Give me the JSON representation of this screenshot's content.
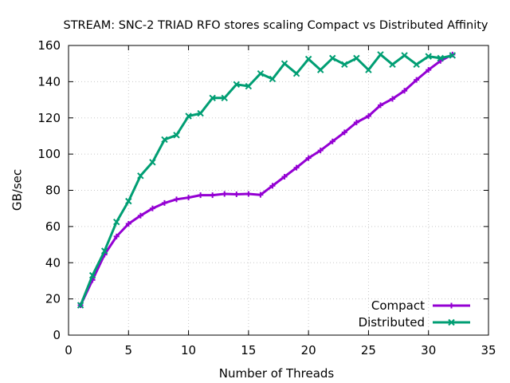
{
  "chart_data": {
    "type": "line",
    "title": "STREAM: SNC-2 TRIAD RFO stores scaling Compact vs Distributed Affinity",
    "xlabel": "Number of Threads",
    "ylabel": "GB/sec",
    "xlim": [
      0,
      35
    ],
    "ylim": [
      0,
      160
    ],
    "xticks": [
      0,
      5,
      10,
      15,
      20,
      25,
      30,
      35
    ],
    "yticks": [
      0,
      20,
      40,
      60,
      80,
      100,
      120,
      140,
      160
    ],
    "grid": true,
    "legend_position": "bottom-right",
    "series": [
      {
        "name": "Compact",
        "color": "#9400d3",
        "marker": "plus",
        "x": [
          1,
          2,
          3,
          4,
          5,
          6,
          7,
          8,
          9,
          10,
          11,
          12,
          13,
          14,
          15,
          16,
          17,
          18,
          19,
          20,
          21,
          22,
          23,
          24,
          25,
          26,
          27,
          28,
          29,
          30,
          31,
          32
        ],
        "y": [
          16.5,
          30.5,
          44.5,
          54.5,
          61.5,
          66,
          70,
          73,
          75,
          76,
          77.3,
          77.3,
          78,
          77.8,
          78,
          77.5,
          82.5,
          87.5,
          92.5,
          97.8,
          102,
          107,
          112,
          117.5,
          121,
          127,
          130.5,
          135,
          141,
          146.5,
          151.5,
          155
        ]
      },
      {
        "name": "Distributed",
        "color": "#009e73",
        "marker": "x",
        "x": [
          1,
          2,
          3,
          4,
          5,
          6,
          7,
          8,
          9,
          10,
          11,
          12,
          13,
          14,
          15,
          16,
          17,
          18,
          19,
          20,
          21,
          22,
          23,
          24,
          25,
          26,
          27,
          28,
          29,
          30,
          31,
          32
        ],
        "y": [
          16.5,
          33,
          46.5,
          62.5,
          74,
          88,
          95.5,
          108,
          110.5,
          121,
          122.5,
          131,
          131,
          138.5,
          137.5,
          144.5,
          141.5,
          150,
          144.5,
          152.5,
          146.5,
          153,
          149.5,
          153,
          146.5,
          155,
          149.5,
          154.5,
          149.5,
          154,
          153,
          154.5
        ]
      }
    ]
  }
}
